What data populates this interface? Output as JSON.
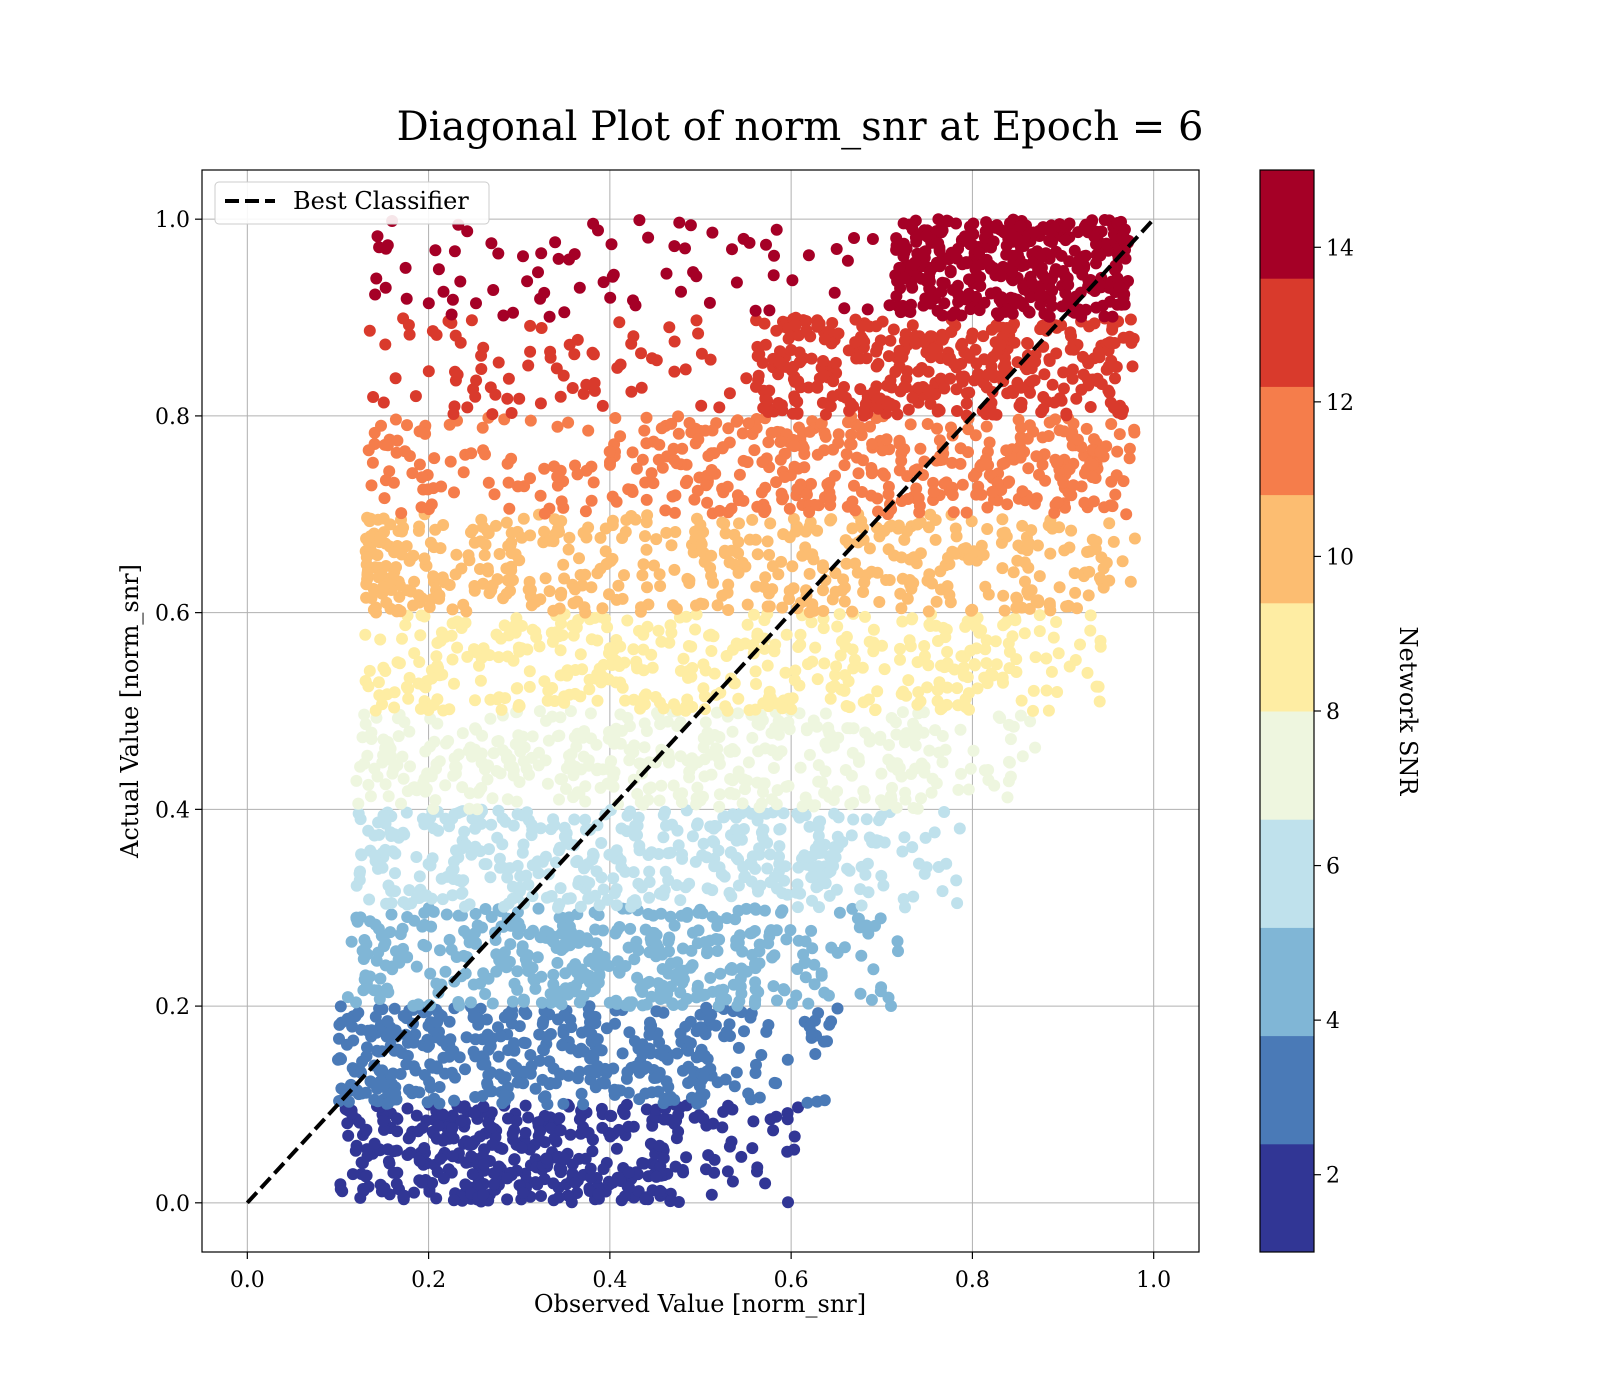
{
  "chart_data": {
    "type": "scatter",
    "title": "Diagonal Plot of norm_snr at Epoch = 6",
    "xlabel": "Observed Value [norm_snr]",
    "ylabel": "Actual Value [norm_snr]",
    "xlim": [
      -0.05,
      1.05
    ],
    "ylim": [
      -0.05,
      1.05
    ],
    "x_ticks": [
      "0.0",
      "0.2",
      "0.4",
      "0.6",
      "0.8",
      "1.0"
    ],
    "y_ticks": [
      "0.0",
      "0.2",
      "0.4",
      "0.6",
      "0.8",
      "1.0"
    ],
    "grid": true,
    "legend": {
      "placement": "top-left",
      "entries": [
        {
          "label": "Best Classifier",
          "style": "dashed",
          "color": "#000000"
        }
      ]
    },
    "reference_line": {
      "label": "Best Classifier",
      "x": [
        0.0,
        1.0
      ],
      "y": [
        0.0,
        1.0
      ]
    },
    "colorbar": {
      "label": "Network SNR",
      "range": [
        1,
        15
      ],
      "ticks": [
        "2",
        "4",
        "6",
        "8",
        "10",
        "12",
        "14"
      ],
      "tick_values": [
        2,
        4,
        6,
        8,
        10,
        12,
        14
      ],
      "colors": [
        "#313695",
        "#4575b4",
        "#74add1",
        "#abd9e9",
        "#e0f3f8",
        "#ffffbf",
        "#fee090",
        "#fdae61",
        "#f46d43",
        "#d73027",
        "#a50026"
      ],
      "band_colors": [
        "#313695",
        "#4a7ab7",
        "#80b6d6",
        "#bfe1ec",
        "#eef6df",
        "#feeda3",
        "#fcbd71",
        "#f57d4b",
        "#d93a2c",
        "#a50026"
      ]
    },
    "bands": [
      {
        "snr": 1.7,
        "y_range": [
          0.0,
          0.1
        ],
        "x_dense_range": [
          0.1,
          0.45
        ],
        "color": "#313695"
      },
      {
        "snr": 3.1,
        "y_range": [
          0.1,
          0.2
        ],
        "x_dense_range": [
          0.1,
          0.5
        ],
        "color": "#4a7ab7"
      },
      {
        "snr": 4.5,
        "y_range": [
          0.2,
          0.3
        ],
        "x_dense_range": [
          0.11,
          0.56
        ],
        "color": "#80b6d6"
      },
      {
        "snr": 5.9,
        "y_range": [
          0.3,
          0.4
        ],
        "x_dense_range": [
          0.12,
          0.63
        ],
        "color": "#bfe1ec"
      },
      {
        "snr": 7.3,
        "y_range": [
          0.4,
          0.5
        ],
        "x_dense_range": [
          0.12,
          0.71
        ],
        "color": "#eef6df"
      },
      {
        "snr": 8.7,
        "y_range": [
          0.5,
          0.6
        ],
        "x_dense_range": [
          0.13,
          0.79
        ],
        "color": "#feeda3"
      },
      {
        "snr": 10.1,
        "y_range": [
          0.6,
          0.7
        ],
        "x_dense_range": [
          0.2,
          0.86
        ],
        "color": "#fcbd71"
      },
      {
        "snr": 11.5,
        "y_range": [
          0.7,
          0.8
        ],
        "x_dense_range": [
          0.4,
          0.93
        ],
        "color": "#f57d4b"
      },
      {
        "snr": 12.9,
        "y_range": [
          0.8,
          0.9
        ],
        "x_dense_range": [
          0.56,
          0.95
        ],
        "color": "#d93a2c"
      },
      {
        "snr": 14.3,
        "y_range": [
          0.9,
          1.0
        ],
        "x_dense_range": [
          0.71,
          0.96
        ],
        "color": "#a50026"
      }
    ]
  }
}
